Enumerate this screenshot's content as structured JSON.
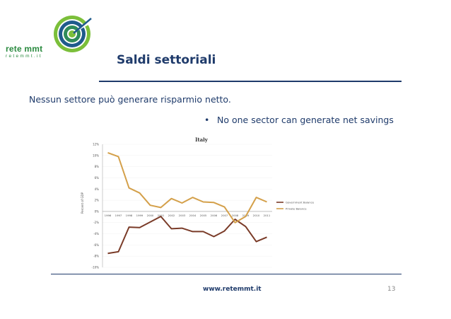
{
  "logo": {
    "main": "rete mmt",
    "sub": "retemmt.it"
  },
  "slide": {
    "title": "Saldi settoriali",
    "text": "Nessun settore può generare risparmio netto.",
    "bullet": "No one sector can generate net savings"
  },
  "footer": {
    "url": "www.retemmt.it",
    "page": "13"
  },
  "chart_data": {
    "type": "line",
    "title": "Italy",
    "ylabel": "Percent of GDP",
    "ylim": [
      -10,
      12
    ],
    "yticks": [
      "12%",
      "10%",
      "8%",
      "6%",
      "4%",
      "2%",
      "0%",
      "-2%",
      "-4%",
      "-6%",
      "-8%",
      "-10%"
    ],
    "x": [
      "1996",
      "1997",
      "1998",
      "1999",
      "2000",
      "2001",
      "2002",
      "2003",
      "2004",
      "2005",
      "2006",
      "2007",
      "2008",
      "2009",
      "2010",
      "2011"
    ],
    "series": [
      {
        "name": "Government Balance",
        "color": "#7a3b28",
        "values": [
          -7.5,
          -7.2,
          -2.8,
          -2.9,
          -1.9,
          -0.9,
          -3.1,
          -3.0,
          -3.6,
          -3.6,
          -4.5,
          -3.5,
          -1.4,
          -2.7,
          -5.4,
          -4.6
        ]
      },
      {
        "name": "Private Balance",
        "color": "#d4a04a",
        "values": [
          10.5,
          9.8,
          4.2,
          3.3,
          1.1,
          0.7,
          2.3,
          1.5,
          2.5,
          1.7,
          1.6,
          0.8,
          -2.0,
          -0.9,
          2.5,
          1.7
        ]
      }
    ]
  }
}
